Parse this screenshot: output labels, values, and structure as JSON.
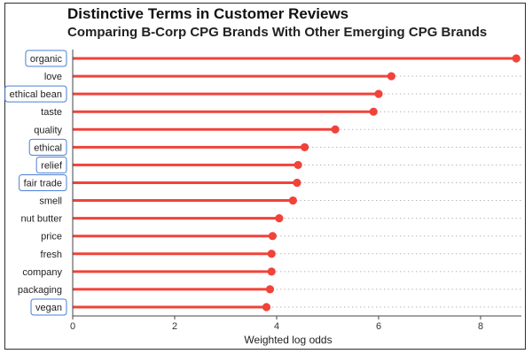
{
  "title": "Distinctive Terms in Customer Reviews",
  "subtitle": "Comparing B-Corp CPG Brands With Other Emerging CPG Brands",
  "colors": {
    "lollipop": "#f0433a",
    "highlight_box": "#4a7fd4",
    "grid_dots": "#b8b8b8",
    "frame": "#2e2e2e"
  },
  "chart_data": {
    "type": "lollipop",
    "title": "Distinctive Terms in Customer Reviews",
    "subtitle": "Comparing B-Corp CPG Brands With Other Emerging CPG Brands",
    "xlabel": "Weighted log odds",
    "ylabel": "",
    "xlim": [
      0,
      8.8
    ],
    "x_ticks": [
      0,
      2,
      4,
      6,
      8
    ],
    "grid": "dotted horizontal",
    "categories": [
      "organic",
      "love",
      "ethical bean",
      "taste",
      "quality",
      "ethical",
      "relief",
      "fair trade",
      "smell",
      "nut butter",
      "price",
      "fresh",
      "company",
      "packaging",
      "vegan"
    ],
    "values": [
      8.7,
      6.25,
      6.0,
      5.9,
      5.15,
      4.55,
      4.42,
      4.4,
      4.32,
      4.05,
      3.92,
      3.9,
      3.9,
      3.87,
      3.8
    ],
    "highlighted": [
      "organic",
      "ethical bean",
      "ethical",
      "relief",
      "fair trade",
      "vegan"
    ]
  }
}
